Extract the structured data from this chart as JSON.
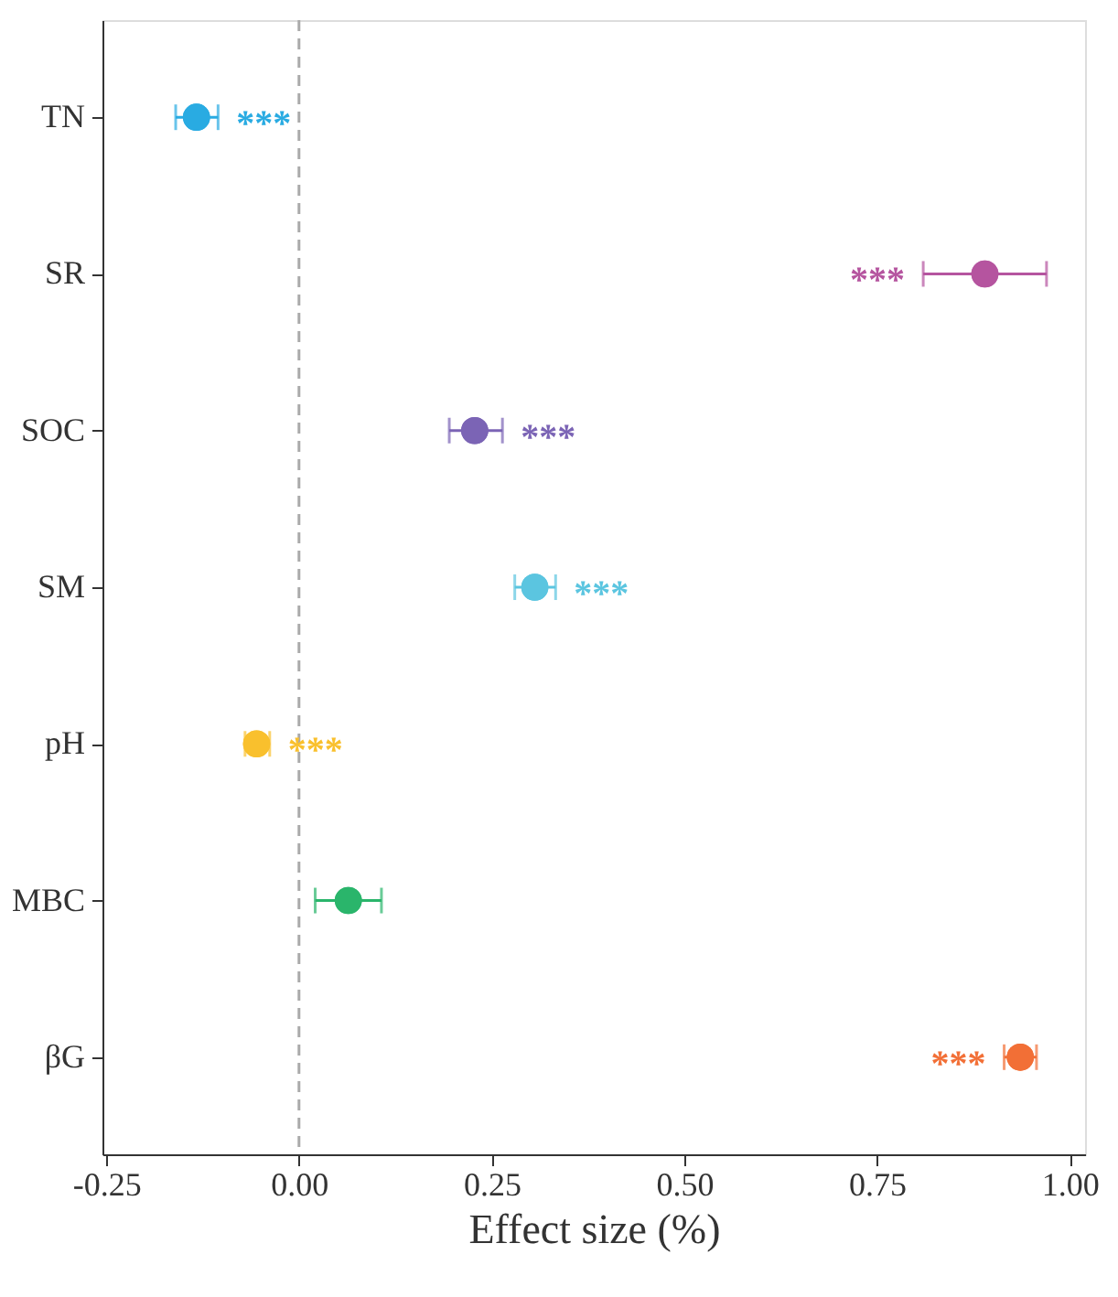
{
  "chart_data": {
    "type": "scatter",
    "orientation": "horizontal",
    "xlabel": "Effect size (%)",
    "categories": [
      "TN",
      "SR",
      "SOC",
      "SM",
      "pH",
      "MBC",
      "βG"
    ],
    "values": [
      -0.133,
      0.89,
      0.228,
      0.306,
      -0.055,
      0.064,
      0.936
    ],
    "colors": [
      "#29abe2",
      "#b5549f",
      "#7b64b5",
      "#5bc5e0",
      "#f9c02d",
      "#2ab56b",
      "#f26f36"
    ],
    "errors": [
      [
        -0.16,
        -0.105
      ],
      [
        0.81,
        0.97
      ],
      [
        0.195,
        0.264
      ],
      [
        0.28,
        0.333
      ],
      [
        -0.07,
        -0.038
      ],
      [
        0.021,
        0.107
      ],
      [
        0.915,
        0.957
      ]
    ],
    "value_labels": [
      "***",
      "***",
      "***",
      "***",
      "***",
      null,
      "***"
    ],
    "xlim": [
      -0.255,
      1.02
    ],
    "xticks": [
      {
        "value": -0.25,
        "label": "-0.25"
      },
      {
        "value": 0,
        "label": "0.00"
      },
      {
        "value": 0.25,
        "label": "0.25"
      },
      {
        "value": 0.5,
        "label": "0.50"
      },
      {
        "value": 0.75,
        "label": "0.75"
      },
      {
        "value": 1,
        "label": "1.00"
      }
    ],
    "ref_lines": [
      {
        "axis": "x",
        "value": 0,
        "color": "#aaaaaa",
        "line_style": "dashed"
      }
    ],
    "grid": false,
    "legend": false,
    "marker": "circle"
  }
}
